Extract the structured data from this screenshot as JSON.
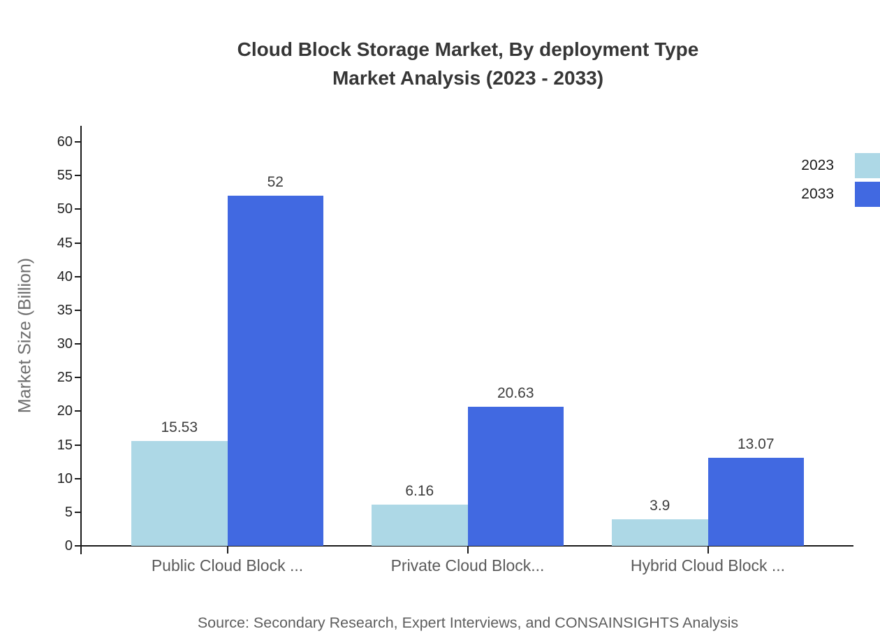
{
  "page": {
    "background": "#ffffff"
  },
  "chart_data": {
    "type": "bar",
    "title": "Cloud Block Storage Market, By deployment Type Market Analysis (2023 - 2033)",
    "title_line1": "Cloud Block Storage Market, By deployment Type",
    "title_line2": "Market Analysis (2023 - 2033)",
    "xlabel": "",
    "ylabel": "Market Size (Billion)",
    "ylim": [
      0,
      60
    ],
    "yticks": [
      0,
      5,
      10,
      15,
      20,
      25,
      30,
      35,
      40,
      45,
      50,
      55,
      60
    ],
    "grid": false,
    "legend_position": "top-right",
    "value_labels_shown": true,
    "categories": [
      "Public Cloud Block ...",
      "Private Cloud Block...",
      "Hybrid Cloud Block ..."
    ],
    "series": [
      {
        "name": "2023",
        "color": "#add8e6",
        "values": [
          15.53,
          6.16,
          3.9
        ],
        "value_labels": [
          "15.53",
          "6.16",
          "3.9"
        ]
      },
      {
        "name": "2033",
        "color": "#4169e1",
        "values": [
          52,
          20.63,
          13.07
        ],
        "value_labels": [
          "52",
          "20.63",
          "13.07"
        ]
      }
    ]
  },
  "source_note": "Source: Secondary Research, Expert Interviews, and CONSAINSIGHTS Analysis",
  "colors": {
    "title": "#363636",
    "axis": "#1a1a1a",
    "y_tick_label": "#1f1f1f",
    "category_label": "#5a5a5a",
    "value_label": "#3d3d3d",
    "legend_label": "#1a1a1a",
    "y_axis_title": "#6e6e6e",
    "source": "#5e5e5e",
    "series_2023": "#add8e6",
    "series_2033": "#4169e1",
    "background": "#ffffff"
  }
}
